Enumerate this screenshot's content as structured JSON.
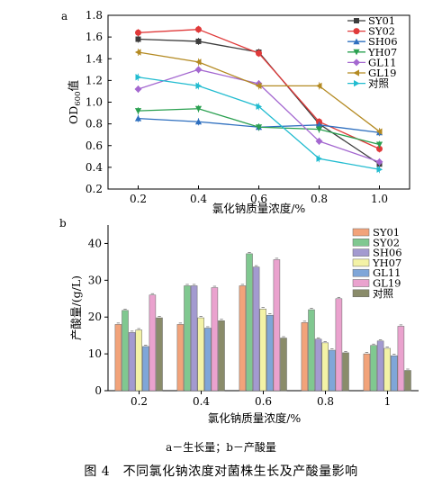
{
  "chart_data": [
    {
      "type": "line",
      "panel": "a",
      "xlabel": "氯化钠质量浓度/%",
      "ylabel_main": "OD",
      "ylabel_sub": "600",
      "ylabel_suffix": "值",
      "x": [
        0.2,
        0.4,
        0.6,
        0.8,
        1.0
      ],
      "x_ticks": [
        "0.2",
        "0.4",
        "0.6",
        "0.8",
        "1.0"
      ],
      "xlim": [
        0.1,
        1.1
      ],
      "ylim": [
        0.2,
        1.8
      ],
      "y_ticks": [
        "0.2",
        "0.4",
        "0.6",
        "0.8",
        "1.0",
        "1.2",
        "1.4",
        "1.6",
        "1.8"
      ],
      "legend_position": "top-right",
      "series": [
        {
          "name": "SY01",
          "color": "#3c3c3c",
          "marker": "square",
          "values": [
            1.58,
            1.56,
            1.46,
            0.8,
            0.43
          ]
        },
        {
          "name": "SY02",
          "color": "#e03a3a",
          "marker": "circle",
          "values": [
            1.64,
            1.67,
            1.45,
            0.82,
            0.57
          ]
        },
        {
          "name": "SH06",
          "color": "#2e6fbf",
          "marker": "triangle",
          "values": [
            0.85,
            0.82,
            0.77,
            0.79,
            0.72
          ]
        },
        {
          "name": "YH07",
          "color": "#2aa050",
          "marker": "triangle-down",
          "values": [
            0.92,
            0.94,
            0.77,
            0.75,
            0.61
          ]
        },
        {
          "name": "GL11",
          "color": "#a468d0",
          "marker": "diamond",
          "values": [
            1.12,
            1.3,
            1.17,
            0.64,
            0.45
          ]
        },
        {
          "name": "GL19",
          "color": "#b48a22",
          "marker": "triangle-left",
          "values": [
            1.46,
            1.37,
            1.15,
            1.15,
            0.73
          ]
        },
        {
          "name": "对照",
          "color": "#22bcd0",
          "marker": "triangle-right",
          "values": [
            1.23,
            1.15,
            0.96,
            0.48,
            0.38
          ]
        }
      ]
    },
    {
      "type": "bar",
      "panel": "b",
      "xlabel": "氯化钠质量浓度/%",
      "ylabel": "产酸量/(g/L)",
      "categories": [
        "0.2",
        "0.4",
        "0.6",
        "0.8",
        "1"
      ],
      "ylim": [
        0,
        45
      ],
      "y_ticks": [
        "0",
        "10",
        "20",
        "30",
        "40"
      ],
      "legend_position": "top-right",
      "series": [
        {
          "name": "SY01",
          "color": "#f2a37a",
          "values": [
            18.0,
            18.0,
            28.5,
            18.5,
            10.0
          ]
        },
        {
          "name": "SY02",
          "color": "#80c890",
          "values": [
            21.8,
            28.5,
            37.2,
            22.0,
            12.3
          ]
        },
        {
          "name": "SH06",
          "color": "#a39ad0",
          "values": [
            15.8,
            28.5,
            33.6,
            14.0,
            13.5
          ]
        },
        {
          "name": "YH07",
          "color": "#f3f2a6",
          "values": [
            16.5,
            19.8,
            22.2,
            13.0,
            11.5
          ]
        },
        {
          "name": "GL11",
          "color": "#7fa6d8",
          "values": [
            12.0,
            17.0,
            20.5,
            11.0,
            9.5
          ]
        },
        {
          "name": "GL19",
          "color": "#eaa2ce",
          "values": [
            26.0,
            28.0,
            35.6,
            25.0,
            17.5
          ]
        },
        {
          "name": "对照",
          "color": "#8a8c6a",
          "values": [
            19.8,
            19.0,
            14.3,
            10.3,
            5.5
          ]
        }
      ]
    }
  ],
  "captions": {
    "sub": "a－生长量；b－产酸量",
    "main": "图 4　不同氯化钠浓度对菌株生长及产酸量影响"
  }
}
